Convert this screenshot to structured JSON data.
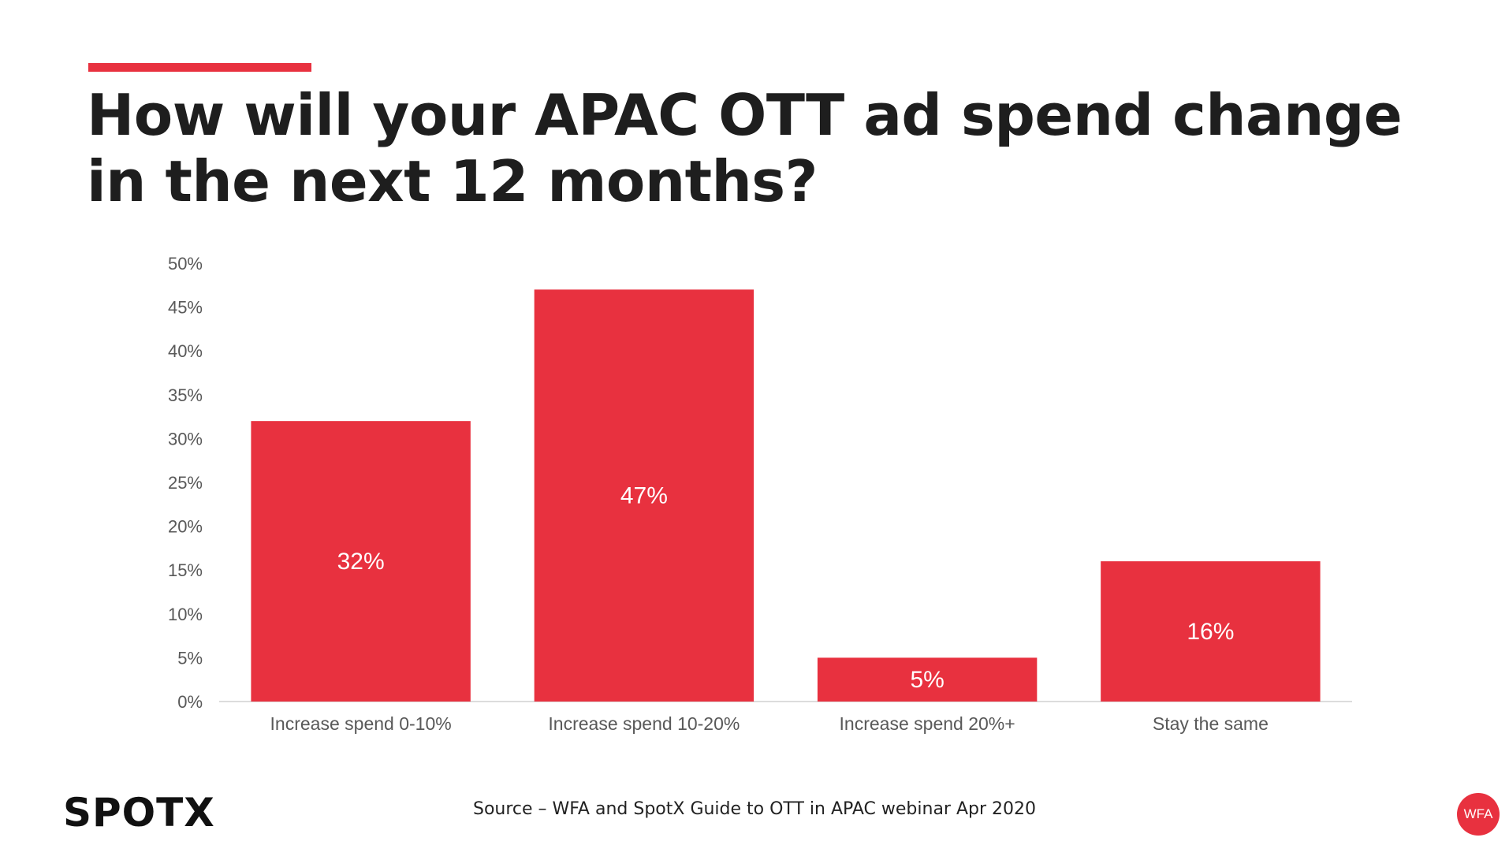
{
  "title": "How will your APAC OTT ad spend change in the next 12 months?",
  "source": "Source – WFA and SpotX Guide to OTT in APAC webinar Apr 2020",
  "logos": {
    "left": "SPOTX",
    "right": "WFA"
  },
  "colors": {
    "accent": "#e8313f",
    "bar": "#e8313f",
    "axis_text": "#595959",
    "bar_label": "#ffffff"
  },
  "chart_data": {
    "type": "bar",
    "categories": [
      "Increase spend 0-10%",
      "Increase spend 10-20%",
      "Increase spend 20%+",
      "Stay the same"
    ],
    "values": [
      32,
      47,
      5,
      16
    ],
    "data_labels": [
      "32%",
      "47%",
      "5%",
      "16%"
    ],
    "yticks": [
      "0%",
      "5%",
      "10%",
      "15%",
      "20%",
      "25%",
      "30%",
      "35%",
      "40%",
      "45%",
      "50%"
    ],
    "ylim": [
      0,
      50
    ],
    "grid": false,
    "legend": "none"
  }
}
